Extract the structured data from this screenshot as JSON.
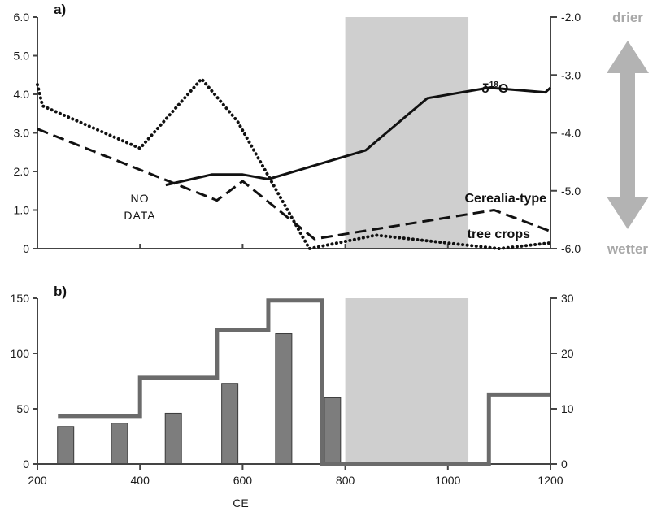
{
  "chart_data": [
    {
      "panel": "a)",
      "type": "line",
      "xlim": [
        200,
        1200
      ],
      "ylim_left": [
        0,
        6
      ],
      "ylim_right": [
        -6,
        -2
      ],
      "left_ticks": [
        "0",
        "1.0",
        "2.0",
        "3.0",
        "4.0",
        "5.0",
        "6.0"
      ],
      "right_ticks": [
        "-2.0",
        "-3.0",
        "-4.0",
        "-5.0",
        "-6.0"
      ],
      "right_axis_ends": {
        "top": "drier",
        "bottom": "wetter"
      },
      "shaded_x_range": [
        800,
        1040
      ],
      "nodata_label": [
        "NO",
        "DATA"
      ],
      "series": [
        {
          "name": "δ18O",
          "label_main": "δ",
          "label_super": "18",
          "label_end": "O",
          "axis": "right",
          "style": "solid",
          "x": [
            450,
            540,
            600,
            650,
            840,
            960,
            1080,
            1190,
            1200
          ],
          "y": [
            -4.9,
            -4.72,
            -4.72,
            -4.8,
            -4.3,
            -3.4,
            -3.22,
            -3.3,
            -3.22
          ]
        },
        {
          "name": "Cerealia-type",
          "axis": "left",
          "style": "dashed",
          "x": [
            200,
            550,
            600,
            740,
            1090,
            1200
          ],
          "y": [
            3.1,
            1.25,
            1.75,
            0.25,
            1.0,
            0.45
          ]
        },
        {
          "name": "tree crops",
          "axis": "left",
          "style": "dotted",
          "x": [
            200,
            210,
            400,
            520,
            590,
            730,
            860,
            1100,
            1200
          ],
          "y": [
            4.25,
            3.7,
            2.6,
            4.4,
            3.3,
            0,
            0.35,
            0,
            0.15
          ]
        }
      ]
    },
    {
      "panel": "b)",
      "type": "bar",
      "xlabel": "CE",
      "xlim": [
        200,
        1200
      ],
      "x_ticks": [
        "200",
        "400",
        "600",
        "800",
        "1000",
        "1200"
      ],
      "ylim_left": [
        0,
        150
      ],
      "ylim_right": [
        0,
        30
      ],
      "left_ticks": [
        "0",
        "50",
        "100",
        "150"
      ],
      "right_ticks": [
        "0",
        "10",
        "20",
        "30"
      ],
      "shaded_x_range": [
        800,
        1040
      ],
      "bars": {
        "axis": "left",
        "x": [
          255,
          360,
          465,
          575,
          680,
          775
        ],
        "values": [
          34,
          37,
          46,
          73,
          118,
          60
        ]
      },
      "step_series": {
        "axis": "right",
        "segments": [
          {
            "x_start": 240,
            "x_end": 400,
            "value": 8.7
          },
          {
            "x_start": 400,
            "x_end": 550,
            "value": 15.6
          },
          {
            "x_start": 550,
            "x_end": 650,
            "value": 24.3
          },
          {
            "x_start": 650,
            "x_end": 755,
            "value": 29.6
          },
          {
            "x_start": 755,
            "x_end": 1080,
            "value": 0
          },
          {
            "x_start": 1080,
            "x_end": 1200,
            "value": 12.6
          }
        ]
      }
    }
  ]
}
